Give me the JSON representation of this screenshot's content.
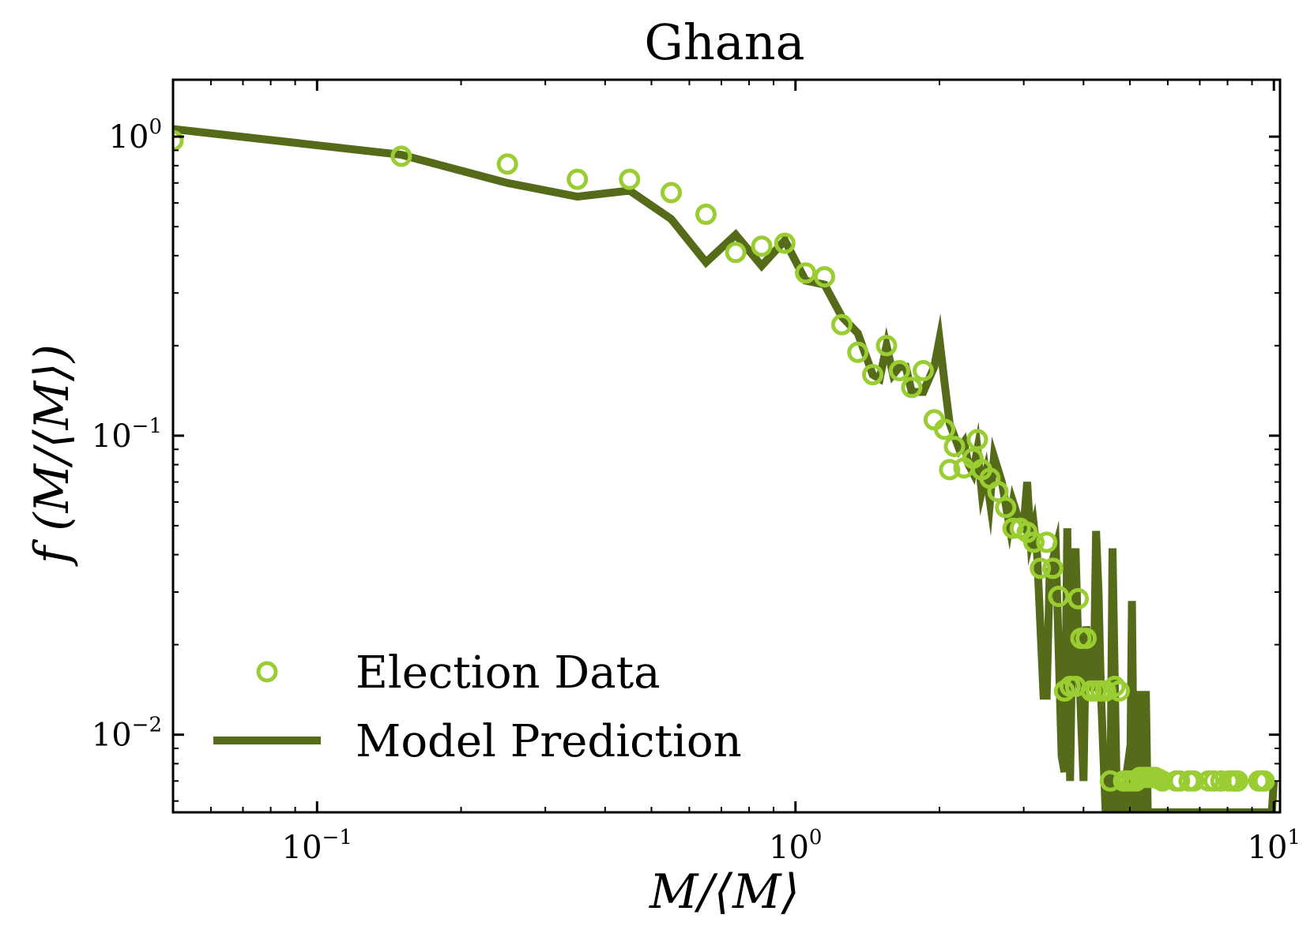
{
  "chart_data": {
    "type": "scatter",
    "title": "Ghana",
    "xlabel": "M/⟨M⟩",
    "ylabel": "f (M/⟨M⟩)",
    "xscale": "log",
    "yscale": "log",
    "xlim": [
      0.05,
      10.3
    ],
    "ylim": [
      0.0055,
      1.55
    ],
    "xticks": [
      {
        "value": 0.1,
        "base": "10",
        "exp": "−1"
      },
      {
        "value": 1,
        "base": "10",
        "exp": "0"
      },
      {
        "value": 10,
        "base": "10",
        "exp": "1"
      }
    ],
    "yticks": [
      {
        "value": 1,
        "base": "10",
        "exp": "0"
      },
      {
        "value": 0.1,
        "base": "10",
        "exp": "−1"
      },
      {
        "value": 0.01,
        "base": "10",
        "exp": "−2"
      }
    ],
    "grid": false,
    "legend": "lower-left",
    "colors": {
      "data": "#9acd32",
      "model": "#556b1a",
      "axes": "#000000"
    },
    "series": [
      {
        "name": "Election Data",
        "kind": "scatter",
        "x": [
          0.05,
          0.15,
          0.25,
          0.35,
          0.45,
          0.55,
          0.65,
          0.75,
          0.85,
          0.95,
          1.05,
          1.15,
          1.25,
          1.35,
          1.45,
          1.55,
          1.65,
          1.75,
          1.85,
          1.95,
          2.05,
          2.1,
          2.15,
          2.25,
          2.35,
          2.4,
          2.45,
          2.55,
          2.65,
          2.75,
          2.85,
          2.95,
          3.05,
          3.15,
          3.25,
          3.35,
          3.45,
          3.55,
          3.65,
          3.75,
          3.85,
          3.9,
          3.95,
          4.05,
          4.15,
          4.25,
          4.35,
          4.45,
          4.55,
          4.65,
          4.75,
          4.85,
          4.95,
          5.05,
          5.15,
          5.25,
          5.35,
          5.45,
          5.55,
          5.65,
          5.75,
          5.85,
          6.25,
          6.35,
          6.65,
          6.8,
          7.3,
          7.5,
          7.75,
          8.05,
          8.2,
          8.3,
          8.4,
          9.3,
          9.45,
          9.55
        ],
        "y": [
          0.97,
          0.86,
          0.81,
          0.72,
          0.72,
          0.65,
          0.55,
          0.41,
          0.43,
          0.44,
          0.35,
          0.34,
          0.235,
          0.19,
          0.16,
          0.2,
          0.165,
          0.145,
          0.165,
          0.113,
          0.105,
          0.077,
          0.092,
          0.078,
          0.084,
          0.097,
          0.077,
          0.072,
          0.065,
          0.0575,
          0.049,
          0.049,
          0.0475,
          0.044,
          0.036,
          0.044,
          0.036,
          0.029,
          0.014,
          0.0145,
          0.0145,
          0.0285,
          0.021,
          0.021,
          0.014,
          0.014,
          0.014,
          0.014,
          0.007,
          0.0145,
          0.014,
          0.007,
          0.007,
          0.007,
          0.007,
          0.0072,
          0.0072,
          0.0072,
          0.0072,
          0.0072,
          0.0071,
          0.007,
          0.007,
          0.007,
          0.007,
          0.007,
          0.007,
          0.007,
          0.007,
          0.007,
          0.007,
          0.007,
          0.007,
          0.007,
          0.007,
          0.007
        ]
      },
      {
        "name": "Model Prediction",
        "kind": "line",
        "x": [
          0.05,
          0.15,
          0.25,
          0.35,
          0.45,
          0.55,
          0.65,
          0.75,
          0.85,
          0.95,
          1.05,
          1.15,
          1.25,
          1.35,
          1.45,
          1.5,
          1.55,
          1.6,
          1.65,
          1.7,
          1.75,
          1.8,
          1.85,
          1.95,
          2.0,
          2.05,
          2.1,
          2.2,
          2.25,
          2.3,
          2.35,
          2.4,
          2.45,
          2.5,
          2.55,
          2.6,
          2.7,
          2.8,
          2.85,
          2.9,
          3.0,
          3.05,
          3.1,
          3.15,
          3.2,
          3.3,
          3.35,
          3.4,
          3.5,
          3.6,
          3.65,
          3.7,
          3.75,
          3.8,
          3.85,
          3.9,
          4.0,
          4.05,
          4.1,
          4.2,
          4.25,
          4.3,
          4.35,
          4.45,
          4.5,
          4.55,
          4.6,
          4.7,
          4.75,
          4.8,
          4.9,
          4.95,
          5.0,
          5.05,
          5.1,
          5.15,
          5.2,
          5.25,
          5.3,
          5.35,
          5.4,
          5.45,
          5.5,
          5.55,
          5.6,
          5.65,
          5.7,
          5.75,
          5.8,
          5.85,
          5.9,
          5.95,
          6.0,
          6.05,
          6.1,
          6.15,
          6.2,
          6.25,
          6.3,
          6.35,
          6.4,
          6.45,
          6.5,
          6.6,
          6.7,
          6.8,
          6.9,
          7.0,
          7.1,
          7.2,
          7.3,
          7.4,
          7.5,
          7.6,
          7.7,
          7.8,
          7.9,
          8.0,
          8.1,
          8.2,
          8.3,
          8.4,
          8.5,
          8.6,
          8.7,
          8.8,
          8.9,
          9.0,
          9.1,
          9.2,
          9.3,
          9.4,
          9.5,
          9.6,
          9.7,
          9.8,
          9.9,
          10.0
        ],
        "y": [
          1.06,
          0.87,
          0.7,
          0.63,
          0.66,
          0.53,
          0.38,
          0.47,
          0.37,
          0.45,
          0.33,
          0.32,
          0.25,
          0.22,
          0.16,
          0.155,
          0.2,
          0.16,
          0.17,
          0.17,
          0.14,
          0.14,
          0.14,
          0.17,
          0.21,
          0.15,
          0.11,
          0.09,
          0.095,
          0.08,
          0.075,
          0.09,
          0.065,
          0.075,
          0.06,
          0.085,
          0.07,
          0.05,
          0.06,
          0.055,
          0.05,
          0.07,
          0.045,
          0.05,
          0.04,
          0.0135,
          0.0135,
          0.035,
          0.042,
          0.0085,
          0.0075,
          0.049,
          0.007,
          0.028,
          0.042,
          0.02,
          0.007,
          0.023,
          0.02,
          0.014,
          0.048,
          0.03,
          0.014,
          0.0055,
          0.0055,
          0.0055,
          0.042,
          0.0055,
          0.0055,
          0.0055,
          0.007,
          0.0055,
          0.0055,
          0.028,
          0.0055,
          0.0055,
          0.0055,
          0.014,
          0.0055,
          0.0055,
          0.014,
          0.0055,
          0.0055,
          0.0055,
          0.0055,
          0.0055,
          0.0055,
          0.0055,
          0.0055,
          0.0055,
          0.0055,
          0.0055,
          0.0055,
          0.0055,
          0.0055,
          0.0055,
          0.0055,
          0.0055,
          0.0055,
          0.0055,
          0.0055,
          0.0055,
          0.0055,
          0.0055,
          0.0055,
          0.0055,
          0.0055,
          0.0055,
          0.0055,
          0.0055,
          0.0055,
          0.0055,
          0.0055,
          0.0055,
          0.0055,
          0.0055,
          0.0055,
          0.0055,
          0.0055,
          0.0055,
          0.0055,
          0.0055,
          0.0055,
          0.0055,
          0.0055,
          0.0055,
          0.0055,
          0.0055,
          0.0055,
          0.0055,
          0.0055,
          0.0055,
          0.0055,
          0.0055,
          0.0055,
          0.0055,
          0.0055,
          0.007
        ]
      }
    ]
  }
}
